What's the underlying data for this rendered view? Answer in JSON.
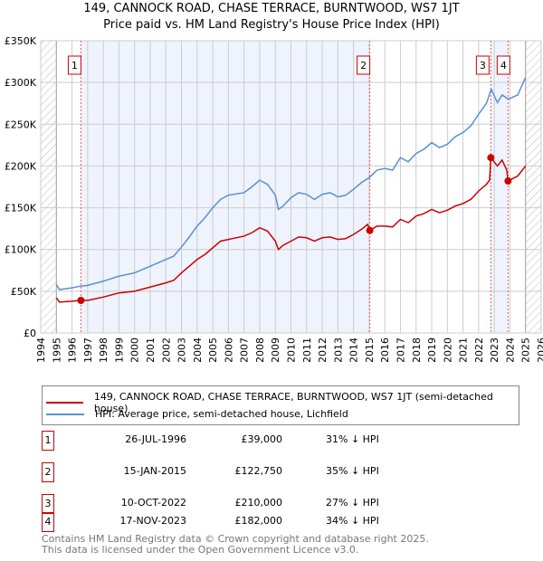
{
  "chart_data": {
    "type": "line",
    "title": "149, CANNOCK ROAD, CHASE TERRACE, BURNTWOOD, WS7 1JT",
    "subtitle": "Price paid vs. HM Land Registry's House Price Index (HPI)",
    "xlim": [
      1994,
      2026
    ],
    "ylim": [
      0,
      350000
    ],
    "x_ticks": [
      "1994",
      "1995",
      "1996",
      "1997",
      "1998",
      "1999",
      "2000",
      "2001",
      "2002",
      "2003",
      "2004",
      "2005",
      "2006",
      "2007",
      "2008",
      "2009",
      "2010",
      "2011",
      "2012",
      "2013",
      "2014",
      "2015",
      "2016",
      "2017",
      "2018",
      "2019",
      "2020",
      "2021",
      "2022",
      "2023",
      "2024",
      "2025",
      "2026"
    ],
    "y_ticks": [
      {
        "v": 0,
        "label": "£0"
      },
      {
        "v": 50000,
        "label": "£50K"
      },
      {
        "v": 100000,
        "label": "£100K"
      },
      {
        "v": 150000,
        "label": "£150K"
      },
      {
        "v": 200000,
        "label": "£200K"
      },
      {
        "v": 250000,
        "label": "£250K"
      },
      {
        "v": 300000,
        "label": "£300K"
      },
      {
        "v": 350000,
        "label": "£350K"
      }
    ],
    "grid": true,
    "series": [
      {
        "name": "149, CANNOCK ROAD, CHASE TERRACE, BURNTWOOD, WS7 1JT (semi-detached house)",
        "color": "#cc0000",
        "x": [
          1995,
          1995.2,
          1996,
          1996.57,
          1997,
          1998,
          1999,
          2000,
          2001,
          2002,
          2002.5,
          2003,
          2003.5,
          2004,
          2004.5,
          2005,
          2005.5,
          2006,
          2007,
          2007.5,
          2008,
          2008.5,
          2009,
          2009.2,
          2009.5,
          2010,
          2010.5,
          2011,
          2011.5,
          2012,
          2012.5,
          2013,
          2013.5,
          2014,
          2014.5,
          2014.9,
          2015.04,
          2015.5,
          2016,
          2016.5,
          2017,
          2017.5,
          2018,
          2018.5,
          2019,
          2019.5,
          2020,
          2020.5,
          2021,
          2021.5,
          2022,
          2022.5,
          2022.7,
          2022.78,
          2023.2,
          2023.5,
          2023.8,
          2023.88,
          2024.5,
          2025
        ],
        "y": [
          42,
          37,
          38,
          39,
          39,
          43,
          48,
          50,
          55,
          60,
          63,
          72,
          80,
          88,
          94,
          102,
          110,
          112,
          116,
          120,
          126,
          122,
          110,
          100,
          105,
          110,
          115,
          114,
          110,
          114,
          115,
          112,
          113,
          118,
          124,
          130,
          122.75,
          128,
          128,
          127,
          136,
          132,
          140,
          143,
          148,
          144,
          147,
          152,
          155,
          160,
          170,
          178,
          183,
          210,
          200,
          207,
          195,
          182,
          188,
          200
        ]
      },
      {
        "name": "HPI: Average price, semi-detached house, Lichfield",
        "color": "#5b8fd4",
        "x": [
          1995,
          1995.2,
          1996,
          1996.5,
          1997,
          1998,
          1999,
          2000,
          2001,
          2002,
          2002.5,
          2003,
          2003.5,
          2004,
          2004.5,
          2005,
          2005.5,
          2006,
          2007,
          2007.5,
          2008,
          2008.5,
          2009,
          2009.2,
          2009.5,
          2010,
          2010.5,
          2011,
          2011.5,
          2012,
          2012.5,
          2013,
          2013.5,
          2014,
          2014.5,
          2015,
          2015.5,
          2016,
          2016.5,
          2017,
          2017.5,
          2018,
          2018.5,
          2019,
          2019.5,
          2020,
          2020.5,
          2021,
          2021.5,
          2022,
          2022.5,
          2022.8,
          2023.2,
          2023.5,
          2023.9,
          2024.5,
          2025
        ],
        "y": [
          58,
          52,
          54,
          56,
          57,
          62,
          68,
          72,
          80,
          88,
          92,
          103,
          115,
          128,
          138,
          150,
          160,
          165,
          168,
          175,
          183,
          178,
          165,
          148,
          152,
          162,
          168,
          166,
          160,
          166,
          168,
          163,
          165,
          172,
          180,
          186,
          195,
          197,
          195,
          210,
          205,
          215,
          220,
          228,
          222,
          226,
          235,
          240,
          248,
          262,
          275,
          292,
          276,
          285,
          280,
          285,
          306
        ]
      }
    ],
    "sales": [
      {
        "n": "1",
        "x": 1996.57,
        "y": 39,
        "date": "26-JUL-1996",
        "price": "£39,000",
        "hpi": "31% ↓ HPI"
      },
      {
        "n": "2",
        "x": 2015.04,
        "y": 122.75,
        "date": "15-JAN-2015",
        "price": "£122,750",
        "hpi": "35% ↓ HPI"
      },
      {
        "n": "3",
        "x": 2022.78,
        "y": 210,
        "date": "10-OCT-2022",
        "price": "£210,000",
        "hpi": "27% ↓ HPI"
      },
      {
        "n": "4",
        "x": 2023.88,
        "y": 182,
        "date": "17-NOV-2023",
        "price": "£182,000",
        "hpi": "34% ↓ HPI"
      }
    ],
    "y_units": "thousands GBP"
  },
  "footer": {
    "line1": "Contains HM Land Registry data © Crown copyright and database right 2025.",
    "line2": "This data is licensed under the Open Government Licence v3.0."
  }
}
